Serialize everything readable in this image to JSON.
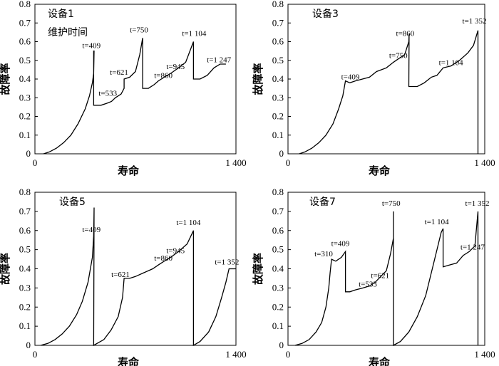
{
  "figure": {
    "xlabel": "寿命",
    "ylabel": "故障率",
    "xtick_labels": [
      "0",
      "1 400"
    ],
    "ytick_labels": [
      "0",
      "0.1",
      "0.2",
      "0.3",
      "0.4",
      "0.5",
      "0.6",
      "0.7",
      "0.8"
    ],
    "line_color": "#000000"
  },
  "chart_data": [
    {
      "type": "line",
      "title": "设备1",
      "subtitle": "维护时间",
      "xlabel": "寿命",
      "ylabel": "故障率",
      "xlim": [
        0,
        1400
      ],
      "ylim": [
        0,
        0.8
      ],
      "grid": false,
      "points": [
        [
          60,
          0
        ],
        [
          100,
          0.01
        ],
        [
          150,
          0.03
        ],
        [
          200,
          0.06
        ],
        [
          250,
          0.1
        ],
        [
          300,
          0.16
        ],
        [
          350,
          0.24
        ],
        [
          380,
          0.31
        ],
        [
          400,
          0.38
        ],
        [
          409,
          0.43
        ],
        [
          412,
          0.55
        ],
        [
          409,
          0.55
        ],
        [
          409,
          0.26
        ],
        [
          460,
          0.26
        ],
        [
          500,
          0.27
        ],
        [
          533,
          0.28
        ],
        [
          560,
          0.3
        ],
        [
          600,
          0.32
        ],
        [
          621,
          0.35
        ],
        [
          621,
          0.4
        ],
        [
          660,
          0.41
        ],
        [
          700,
          0.44
        ],
        [
          730,
          0.53
        ],
        [
          750,
          0.62
        ],
        [
          750,
          0.35
        ],
        [
          790,
          0.35
        ],
        [
          830,
          0.37
        ],
        [
          860,
          0.39
        ],
        [
          900,
          0.41
        ],
        [
          945,
          0.43
        ],
        [
          1000,
          0.46
        ],
        [
          1050,
          0.49
        ],
        [
          1104,
          0.6
        ],
        [
          1104,
          0.4
        ],
        [
          1150,
          0.4
        ],
        [
          1200,
          0.42
        ],
        [
          1247,
          0.46
        ],
        [
          1290,
          0.48
        ],
        [
          1330,
          0.48
        ]
      ],
      "annotations": [
        {
          "text": "t=409",
          "x": 409
        },
        {
          "text": "t=533",
          "x": 533
        },
        {
          "text": "t=621",
          "x": 621
        },
        {
          "text": "t=750",
          "x": 750
        },
        {
          "text": "t=860",
          "x": 860
        },
        {
          "text": "t=945",
          "x": 945
        },
        {
          "text": "t=1 104",
          "x": 1104
        },
        {
          "text": "t=1 247",
          "x": 1247
        }
      ]
    },
    {
      "type": "line",
      "title": "设备3",
      "xlabel": "寿命",
      "ylabel": "故障率",
      "xlim": [
        0,
        1400
      ],
      "ylim": [
        0,
        0.8
      ],
      "grid": false,
      "points": [
        [
          80,
          0
        ],
        [
          120,
          0.01
        ],
        [
          170,
          0.03
        ],
        [
          220,
          0.06
        ],
        [
          270,
          0.1
        ],
        [
          320,
          0.16
        ],
        [
          360,
          0.24
        ],
        [
          390,
          0.31
        ],
        [
          409,
          0.39
        ],
        [
          440,
          0.38
        ],
        [
          480,
          0.39
        ],
        [
          530,
          0.4
        ],
        [
          580,
          0.41
        ],
        [
          630,
          0.44
        ],
        [
          700,
          0.46
        ],
        [
          750,
          0.49
        ],
        [
          790,
          0.51
        ],
        [
          830,
          0.53
        ],
        [
          860,
          0.6
        ],
        [
          862,
          0.64
        ],
        [
          860,
          0.36
        ],
        [
          920,
          0.36
        ],
        [
          970,
          0.38
        ],
        [
          1020,
          0.41
        ],
        [
          1060,
          0.42
        ],
        [
          1104,
          0.46
        ],
        [
          1160,
          0.47
        ],
        [
          1220,
          0.5
        ],
        [
          1280,
          0.54
        ],
        [
          1320,
          0.58
        ],
        [
          1352,
          0.66
        ],
        [
          1352,
          0
        ]
      ],
      "annotations": [
        {
          "text": "t=409",
          "x": 409
        },
        {
          "text": "t=750",
          "x": 750
        },
        {
          "text": "t=860",
          "x": 860
        },
        {
          "text": "t=1 104",
          "x": 1104
        },
        {
          "text": "t=1 352",
          "x": 1352
        }
      ]
    },
    {
      "type": "line",
      "title": "设备5",
      "xlabel": "寿命",
      "ylabel": "故障率",
      "xlim": [
        0,
        1400
      ],
      "ylim": [
        0,
        0.8
      ],
      "grid": false,
      "points": [
        [
          40,
          0
        ],
        [
          90,
          0.01
        ],
        [
          140,
          0.03
        ],
        [
          190,
          0.06
        ],
        [
          240,
          0.1
        ],
        [
          290,
          0.16
        ],
        [
          330,
          0.23
        ],
        [
          370,
          0.33
        ],
        [
          400,
          0.46
        ],
        [
          409,
          0.57
        ],
        [
          412,
          0.72
        ],
        [
          409,
          0
        ],
        [
          480,
          0.03
        ],
        [
          530,
          0.08
        ],
        [
          580,
          0.15
        ],
        [
          610,
          0.25
        ],
        [
          621,
          0.35
        ],
        [
          621,
          0.35
        ],
        [
          660,
          0.35
        ],
        [
          700,
          0.36
        ],
        [
          760,
          0.38
        ],
        [
          820,
          0.4
        ],
        [
          860,
          0.42
        ],
        [
          900,
          0.44
        ],
        [
          945,
          0.46
        ],
        [
          1000,
          0.49
        ],
        [
          1060,
          0.53
        ],
        [
          1104,
          0.6
        ],
        [
          1104,
          0
        ],
        [
          1150,
          0.02
        ],
        [
          1210,
          0.07
        ],
        [
          1260,
          0.15
        ],
        [
          1300,
          0.25
        ],
        [
          1330,
          0.33
        ],
        [
          1352,
          0.4
        ],
        [
          1400,
          0.4
        ]
      ],
      "annotations": [
        {
          "text": "t=409",
          "x": 409
        },
        {
          "text": "t=621",
          "x": 621
        },
        {
          "text": "t=860",
          "x": 860
        },
        {
          "text": "t=945",
          "x": 945
        },
        {
          "text": "t=1 104",
          "x": 1104
        },
        {
          "text": "t=1 352",
          "x": 1352
        }
      ]
    },
    {
      "type": "line",
      "title": "设备7",
      "xlabel": "寿命",
      "ylabel": "故障率",
      "xlim": [
        0,
        1400
      ],
      "ylim": [
        0,
        0.8
      ],
      "grid": false,
      "points": [
        [
          50,
          0
        ],
        [
          100,
          0.01
        ],
        [
          150,
          0.03
        ],
        [
          200,
          0.07
        ],
        [
          240,
          0.12
        ],
        [
          270,
          0.2
        ],
        [
          290,
          0.3
        ],
        [
          300,
          0.38
        ],
        [
          310,
          0.45
        ],
        [
          340,
          0.44
        ],
        [
          380,
          0.46
        ],
        [
          409,
          0.49
        ],
        [
          409,
          0.28
        ],
        [
          440,
          0.28
        ],
        [
          480,
          0.29
        ],
        [
          533,
          0.3
        ],
        [
          580,
          0.31
        ],
        [
          621,
          0.33
        ],
        [
          660,
          0.36
        ],
        [
          700,
          0.39
        ],
        [
          730,
          0.48
        ],
        [
          750,
          0.56
        ],
        [
          750,
          0.7
        ],
        [
          750,
          0
        ],
        [
          800,
          0.02
        ],
        [
          860,
          0.07
        ],
        [
          920,
          0.15
        ],
        [
          980,
          0.26
        ],
        [
          1020,
          0.38
        ],
        [
          1060,
          0.5
        ],
        [
          1090,
          0.59
        ],
        [
          1104,
          0.61
        ],
        [
          1104,
          0.41
        ],
        [
          1150,
          0.42
        ],
        [
          1200,
          0.43
        ],
        [
          1247,
          0.47
        ],
        [
          1290,
          0.49
        ],
        [
          1330,
          0.52
        ],
        [
          1352,
          0.7
        ],
        [
          1352,
          0
        ]
      ],
      "annotations": [
        {
          "text": "t=310",
          "x": 310
        },
        {
          "text": "t=409",
          "x": 409
        },
        {
          "text": "t=533",
          "x": 533
        },
        {
          "text": "t=621",
          "x": 621
        },
        {
          "text": "t=750",
          "x": 750
        },
        {
          "text": "t=1 104",
          "x": 1104
        },
        {
          "text": "t=1 247",
          "x": 1247
        },
        {
          "text": "t=1 352",
          "x": 1352
        }
      ]
    }
  ]
}
